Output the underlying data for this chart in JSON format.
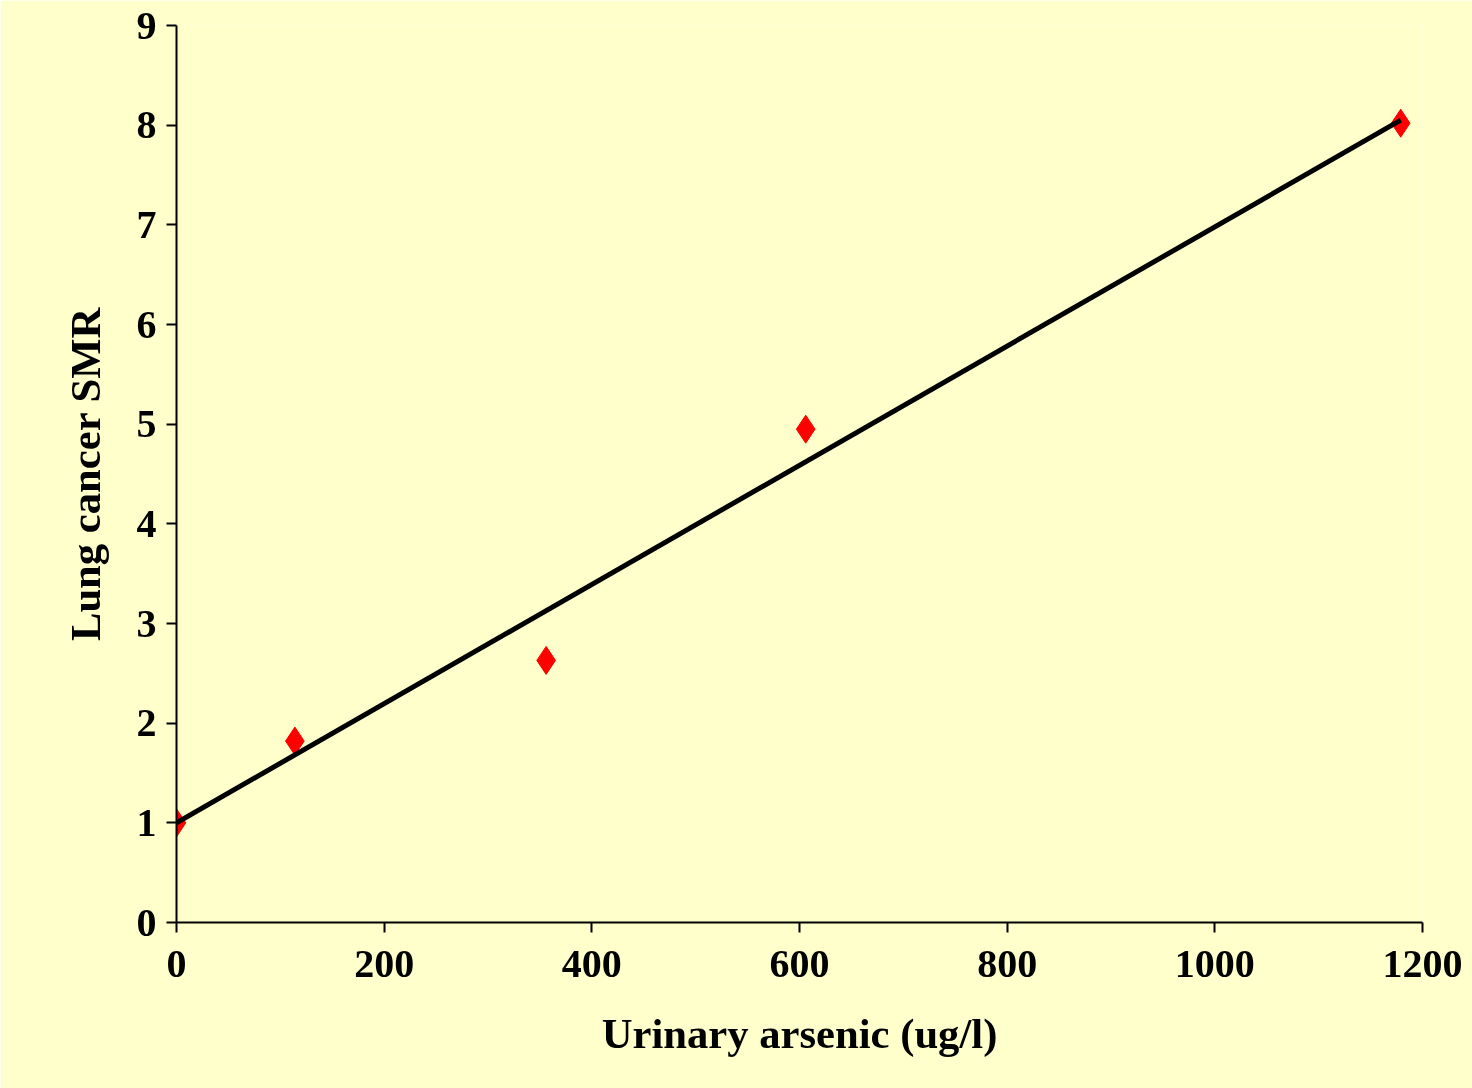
{
  "chart_data": {
    "type": "scatter",
    "xlabel": "Urinary arsenic (ug/l)",
    "ylabel": "Lung cancer SMR",
    "x": [
      0,
      114,
      356,
      606,
      1179
    ],
    "series": [
      {
        "color": "#ff0000",
        "marker": "diamond",
        "values": [
          1.0,
          1.82,
          2.63,
          4.95,
          8.02
        ]
      },
      {
        "type": "line",
        "color": "#000000",
        "x": [
          0,
          1179
        ],
        "values": [
          1.0,
          8.05
        ],
        "marker": "none",
        "line_style": "solid"
      }
    ],
    "xlim": [
      0,
      1200
    ],
    "ylim": [
      0,
      9
    ],
    "xticks": [
      0,
      200,
      400,
      600,
      800,
      1000,
      1200
    ],
    "yticks": [
      0,
      1,
      2,
      3,
      4,
      5,
      6,
      7,
      8,
      9
    ],
    "grid": false
  }
}
